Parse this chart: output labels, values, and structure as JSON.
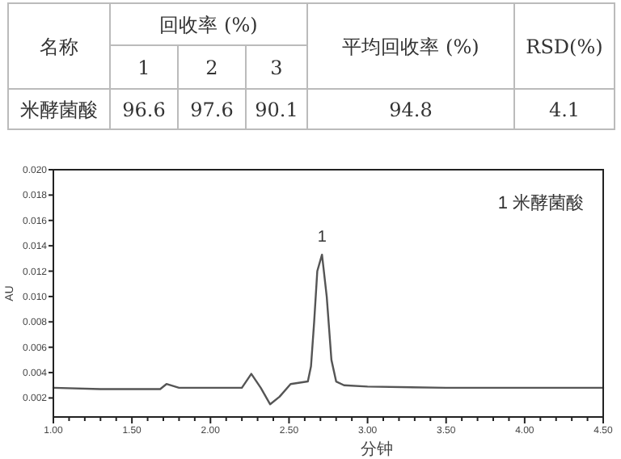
{
  "chart_data": [
    {
      "type": "other",
      "annotations": [
        "名称",
        "回收率 (%)",
        "1",
        "2",
        "3",
        "平均回收率 (%)",
        "RSD(%)",
        "米酵菌酸",
        "96.6",
        "97.6",
        "90.1",
        "94.8",
        "4.1"
      ]
    },
    {
      "type": "line",
      "xlabel": "分钟",
      "ylabel": "AU",
      "xlim": [
        1.0,
        4.5
      ],
      "ylim": [
        0.0005,
        0.02
      ],
      "xticks": [
        {
          "value": 1.0,
          "label": "1.00"
        },
        {
          "value": 1.1,
          "label": null
        },
        {
          "value": 1.2,
          "label": null
        },
        {
          "value": 1.3,
          "label": null
        },
        {
          "value": 1.4,
          "label": null
        },
        {
          "value": 1.5,
          "label": "1.50"
        },
        {
          "value": 1.6,
          "label": null
        },
        {
          "value": 1.7,
          "label": null
        },
        {
          "value": 1.8,
          "label": null
        },
        {
          "value": 1.9,
          "label": null
        },
        {
          "value": 2.0,
          "label": "2.00"
        },
        {
          "value": 2.1,
          "label": null
        },
        {
          "value": 2.2,
          "label": null
        },
        {
          "value": 2.3,
          "label": null
        },
        {
          "value": 2.4,
          "label": null
        },
        {
          "value": 2.5,
          "label": "2.50"
        },
        {
          "value": 2.6,
          "label": null
        },
        {
          "value": 2.7,
          "label": null
        },
        {
          "value": 2.8,
          "label": null
        },
        {
          "value": 2.9,
          "label": null
        },
        {
          "value": 3.0,
          "label": "3.00"
        },
        {
          "value": 3.1,
          "label": null
        },
        {
          "value": 3.2,
          "label": null
        },
        {
          "value": 3.3,
          "label": null
        },
        {
          "value": 3.4,
          "label": null
        },
        {
          "value": 3.5,
          "label": "3.50"
        },
        {
          "value": 3.6,
          "label": null
        },
        {
          "value": 3.7,
          "label": null
        },
        {
          "value": 3.8,
          "label": null
        },
        {
          "value": 3.9,
          "label": null
        },
        {
          "value": 4.0,
          "label": "4.00"
        },
        {
          "value": 4.1,
          "label": null
        },
        {
          "value": 4.2,
          "label": null
        },
        {
          "value": 4.3,
          "label": null
        },
        {
          "value": 4.4,
          "label": null
        },
        {
          "value": 4.5,
          "label": "4.50"
        }
      ],
      "yticks": [
        {
          "value": 0.002,
          "label": "0.002"
        },
        {
          "value": 0.004,
          "label": "0.004"
        },
        {
          "value": 0.006,
          "label": "0.006"
        },
        {
          "value": 0.008,
          "label": "0.008"
        },
        {
          "value": 0.01,
          "label": "0.010"
        },
        {
          "value": 0.012,
          "label": "0.012"
        },
        {
          "value": 0.014,
          "label": "0.014"
        },
        {
          "value": 0.016,
          "label": "0.016"
        },
        {
          "value": 0.018,
          "label": "0.018"
        },
        {
          "value": 0.02,
          "label": "0.020"
        }
      ],
      "annotations": [
        {
          "text": "1",
          "x": 2.71,
          "y": 0.0133
        },
        "1 米酵菌酸"
      ],
      "series": [
        {
          "color": "#555555",
          "x": [
            1.0,
            1.3,
            1.68,
            1.72,
            1.8,
            2.0,
            2.2,
            2.26,
            2.32,
            2.38,
            2.44,
            2.51,
            2.62,
            2.64,
            2.66,
            2.68,
            2.71,
            2.74,
            2.77,
            2.8,
            2.85,
            3.0,
            3.5,
            4.0,
            4.5
          ],
          "values": [
            0.0028,
            0.0027,
            0.0027,
            0.0031,
            0.0028,
            0.0028,
            0.0028,
            0.0039,
            0.0028,
            0.0015,
            0.0021,
            0.0031,
            0.0033,
            0.0045,
            0.008,
            0.012,
            0.0133,
            0.01,
            0.005,
            0.0033,
            0.003,
            0.0029,
            0.0028,
            0.0028,
            0.0028
          ]
        }
      ]
    }
  ]
}
